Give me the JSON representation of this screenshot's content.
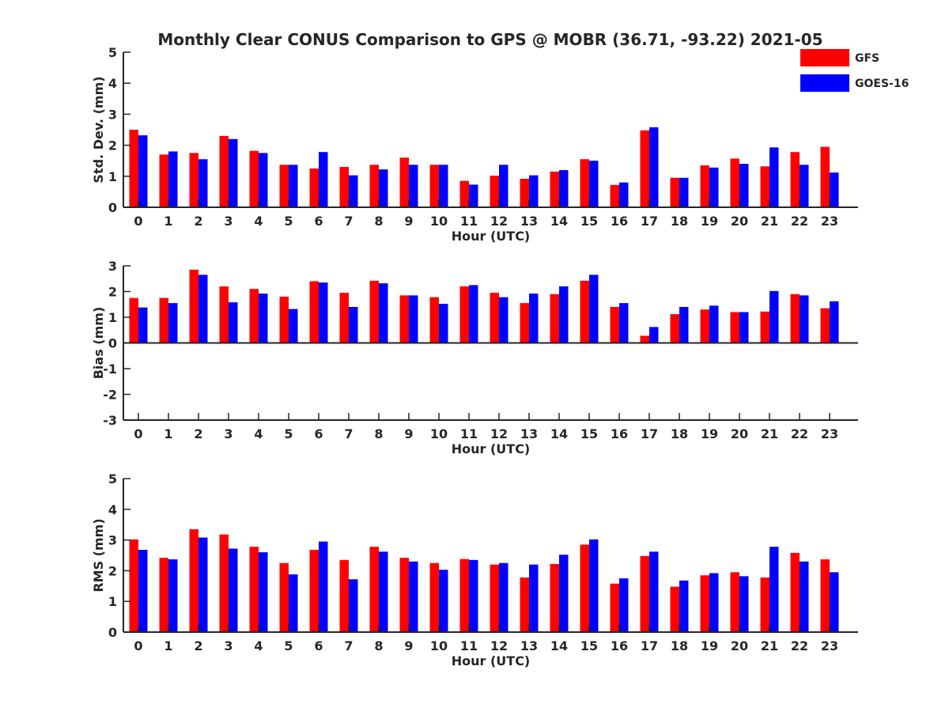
{
  "title": "Monthly Clear CONUS Comparison to GPS @ MOBR (36.71, -93.22) 2021-05",
  "legend": [
    {
      "name": "GFS",
      "color": "#ff0000"
    },
    {
      "name": "GOES-16",
      "color": "#0000ff"
    }
  ],
  "legend_placement": "top-right",
  "colors": {
    "gfs": "#ff0000",
    "goes": "#0000ff",
    "axis": "#262626",
    "background": "#ffffff"
  },
  "chart_data": [
    {
      "type": "bar",
      "xlabel": "Hour (UTC)",
      "ylabel": "Std. Dev. (mm)",
      "ylim": [
        0,
        5
      ],
      "yticks": [
        "0",
        "1",
        "2",
        "3",
        "4",
        "5"
      ],
      "categories": [
        "0",
        "1",
        "2",
        "3",
        "4",
        "5",
        "6",
        "7",
        "8",
        "9",
        "10",
        "11",
        "12",
        "13",
        "14",
        "15",
        "16",
        "17",
        "18",
        "19",
        "20",
        "21",
        "22",
        "23"
      ],
      "grid": false,
      "series": [
        {
          "name": "GFS",
          "values": [
            2.5,
            1.7,
            1.75,
            2.3,
            1.82,
            1.37,
            1.25,
            1.3,
            1.37,
            1.6,
            1.37,
            0.85,
            1.02,
            0.92,
            1.15,
            1.55,
            0.72,
            2.48,
            0.95,
            1.35,
            1.57,
            1.32,
            1.78,
            1.95
          ]
        },
        {
          "name": "GOES-16",
          "values": [
            2.32,
            1.8,
            1.55,
            2.2,
            1.75,
            1.37,
            1.78,
            1.03,
            1.22,
            1.37,
            1.37,
            0.73,
            1.37,
            1.03,
            1.2,
            1.5,
            0.8,
            2.58,
            0.95,
            1.28,
            1.4,
            1.93,
            1.37,
            1.12
          ]
        }
      ]
    },
    {
      "type": "bar",
      "xlabel": "Hour (UTC)",
      "ylabel": "Bias (mm)",
      "ylim": [
        -3,
        3
      ],
      "yticks": [
        "-3",
        "-2",
        "-1",
        "0",
        "1",
        "2",
        "3"
      ],
      "categories": [
        "0",
        "1",
        "2",
        "3",
        "4",
        "5",
        "6",
        "7",
        "8",
        "9",
        "10",
        "11",
        "12",
        "13",
        "14",
        "15",
        "16",
        "17",
        "18",
        "19",
        "20",
        "21",
        "22",
        "23"
      ],
      "grid": false,
      "series": [
        {
          "name": "GFS",
          "values": [
            1.75,
            1.75,
            2.85,
            2.2,
            2.1,
            1.8,
            2.4,
            1.95,
            2.42,
            1.85,
            1.78,
            2.2,
            1.95,
            1.55,
            1.9,
            2.42,
            1.4,
            0.28,
            1.12,
            1.3,
            1.2,
            1.22,
            1.9,
            1.35
          ]
        },
        {
          "name": "GOES-16",
          "values": [
            1.38,
            1.55,
            2.65,
            1.58,
            1.92,
            1.32,
            2.35,
            1.4,
            2.32,
            1.85,
            1.52,
            2.25,
            1.78,
            1.92,
            2.2,
            2.65,
            1.55,
            0.62,
            1.4,
            1.45,
            1.2,
            2.02,
            1.85,
            1.62
          ]
        }
      ]
    },
    {
      "type": "bar",
      "xlabel": "Hour (UTC)",
      "ylabel": "RMS (mm)",
      "ylim": [
        0,
        5
      ],
      "yticks": [
        "0",
        "1",
        "2",
        "3",
        "4",
        "5"
      ],
      "categories": [
        "0",
        "1",
        "2",
        "3",
        "4",
        "5",
        "6",
        "7",
        "8",
        "9",
        "10",
        "11",
        "12",
        "13",
        "14",
        "15",
        "16",
        "17",
        "18",
        "19",
        "20",
        "21",
        "22",
        "23"
      ],
      "grid": false,
      "series": [
        {
          "name": "GFS",
          "values": [
            3.02,
            2.42,
            3.35,
            3.18,
            2.78,
            2.25,
            2.68,
            2.35,
            2.78,
            2.42,
            2.25,
            2.38,
            2.2,
            1.78,
            2.22,
            2.85,
            1.58,
            2.48,
            1.48,
            1.85,
            1.95,
            1.78,
            2.58,
            2.37
          ]
        },
        {
          "name": "GOES-16",
          "values": [
            2.68,
            2.37,
            3.08,
            2.72,
            2.6,
            1.88,
            2.95,
            1.72,
            2.62,
            2.3,
            2.03,
            2.35,
            2.25,
            2.2,
            2.52,
            3.02,
            1.75,
            2.62,
            1.68,
            1.92,
            1.82,
            2.78,
            2.3,
            1.95
          ]
        }
      ]
    }
  ]
}
